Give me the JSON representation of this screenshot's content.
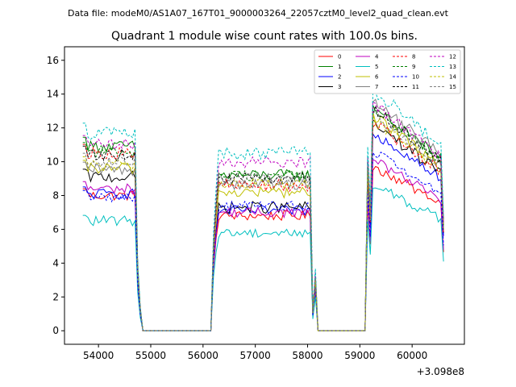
{
  "figure": {
    "suptitle": "Data file: modeM0/AS1A07_167T01_9000003264_22057cztM0_level2_quad_clean.evt",
    "title": "Quadrant 1 module wise count rates with 100.0s bins.",
    "x_offset_label": "+3.098e8"
  },
  "chart_data": {
    "type": "line",
    "title": "Quadrant 1 module wise count rates with 100.0s bins.",
    "xlabel": "",
    "ylabel": "",
    "x_offset": 309800000,
    "xlim": [
      53350,
      61000
    ],
    "ylim": [
      -0.8,
      16.8
    ],
    "xticks": [
      54000,
      55000,
      56000,
      57000,
      58000,
      59000,
      60000
    ],
    "xtick_labels": [
      "54000",
      "55000",
      "56000",
      "57000",
      "58000",
      "59000",
      "60000"
    ],
    "yticks": [
      0,
      2,
      4,
      6,
      8,
      10,
      12,
      14,
      16
    ],
    "ytick_labels": [
      "0",
      "2",
      "4",
      "6",
      "8",
      "10",
      "12",
      "14",
      "16"
    ],
    "grid": false,
    "legend_position": "top-right",
    "legend_columns": 4,
    "segments": [
      {
        "start": 53700,
        "end": 54700,
        "step": 50
      },
      {
        "start": 54750,
        "end": 54800,
        "step": 50,
        "drop": true
      },
      {
        "start": 54850,
        "end": 56150,
        "step": 100,
        "zero": true
      },
      {
        "start": 56200,
        "end": 56250,
        "step": 50,
        "rise": true
      },
      {
        "start": 56300,
        "end": 58050,
        "step": 50
      },
      {
        "start": 58100,
        "end": 58150,
        "step": 50,
        "drop": true
      },
      {
        "start": 58200,
        "end": 59100,
        "step": 100,
        "zero": true
      },
      {
        "start": 59150,
        "end": 59200,
        "step": 50,
        "rise": true
      },
      {
        "start": 59250,
        "end": 60600,
        "step": 50
      }
    ],
    "series": [
      {
        "name": "0",
        "color": "#ff0000",
        "dashed": false,
        "levels": [
          8.0,
          6.8,
          9.3
        ],
        "jitter": 0.3
      },
      {
        "name": "1",
        "color": "#008000",
        "dashed": false,
        "levels": [
          10.9,
          9.2,
          12.6
        ],
        "jitter": 0.35
      },
      {
        "name": "2",
        "color": "#0000ff",
        "dashed": false,
        "levels": [
          8.1,
          7.1,
          11.2
        ],
        "jitter": 0.3
      },
      {
        "name": "3",
        "color": "#000000",
        "dashed": false,
        "levels": [
          9.1,
          7.3,
          11.6
        ],
        "jitter": 0.35
      },
      {
        "name": "4",
        "color": "#bf00bf",
        "dashed": false,
        "levels": [
          8.4,
          7.0,
          9.6
        ],
        "jitter": 0.3
      },
      {
        "name": "5",
        "color": "#00bfbf",
        "dashed": false,
        "levels": [
          6.5,
          5.8,
          8.2
        ],
        "jitter": 0.3
      },
      {
        "name": "6",
        "color": "#bfbf00",
        "dashed": false,
        "levels": [
          9.6,
          8.2,
          12.1
        ],
        "jitter": 0.35
      },
      {
        "name": "7",
        "color": "#808080",
        "dashed": false,
        "levels": [
          9.5,
          8.7,
          12.9
        ],
        "jitter": 0.35
      },
      {
        "name": "8",
        "color": "#ff0000",
        "dashed": true,
        "levels": [
          10.5,
          8.6,
          11.7
        ],
        "jitter": 0.35
      },
      {
        "name": "9",
        "color": "#008000",
        "dashed": true,
        "levels": [
          10.6,
          9.2,
          12.5
        ],
        "jitter": 0.35
      },
      {
        "name": "10",
        "color": "#0000ff",
        "dashed": true,
        "levels": [
          7.9,
          7.4,
          10.1
        ],
        "jitter": 0.3
      },
      {
        "name": "11",
        "color": "#000000",
        "dashed": true,
        "levels": [
          10.4,
          9.0,
          12.5
        ],
        "jitter": 0.35
      },
      {
        "name": "12",
        "color": "#bf00bf",
        "dashed": true,
        "levels": [
          11.0,
          10.0,
          12.8
        ],
        "jitter": 0.35
      },
      {
        "name": "13",
        "color": "#00bfbf",
        "dashed": true,
        "levels": [
          11.7,
          10.5,
          13.6
        ],
        "jitter": 0.4
      },
      {
        "name": "14",
        "color": "#bfbf00",
        "dashed": true,
        "levels": [
          9.8,
          8.7,
          11.9
        ],
        "jitter": 0.35
      },
      {
        "name": "15",
        "color": "#808080",
        "dashed": true,
        "levels": [
          10.0,
          9.0,
          12.2
        ],
        "jitter": 0.35
      }
    ]
  }
}
